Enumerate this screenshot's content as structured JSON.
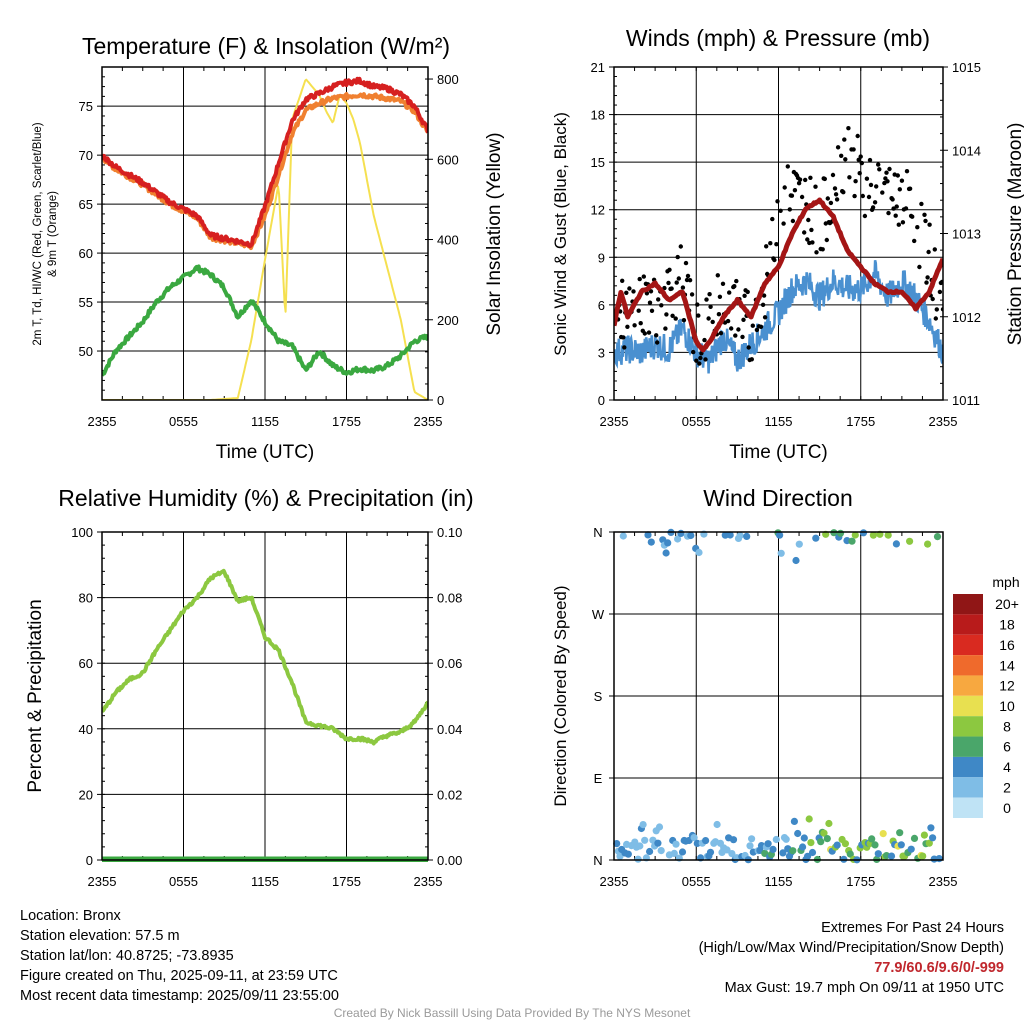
{
  "chart_data": [
    {
      "type": "line",
      "title": "Temperature (F) & Insolation (W/m²)",
      "xlabel": "Time (UTC)",
      "ylabel_left": "2m T, Td, HI/WC (Red, Green, Scarlet/Blue) & 9m T (Orange)",
      "ylabel_right": "Solar Insolation (Yellow)",
      "x_ticks": [
        "2355",
        "0555",
        "1155",
        "1755",
        "2355"
      ],
      "y_left_ticks": [
        50,
        55,
        60,
        65,
        70,
        75
      ],
      "y_left_range": [
        45,
        79
      ],
      "y_right_ticks": [
        0,
        200,
        400,
        600,
        800
      ],
      "y_right_range": [
        0,
        830
      ],
      "x_range": [
        0,
        24
      ],
      "series": [
        {
          "name": "2m T",
          "color": "#d62020",
          "axis": "left",
          "x": [
            0,
            1,
            2,
            3,
            4,
            5,
            6,
            7,
            8,
            9,
            10,
            11,
            12,
            13,
            14,
            15,
            16,
            17,
            18,
            19,
            20,
            21,
            22,
            23,
            24
          ],
          "values": [
            70.0,
            68.8,
            68.0,
            67.2,
            66.2,
            65.2,
            64.5,
            63.8,
            61.8,
            61.5,
            61.2,
            60.9,
            64.8,
            69.2,
            73.5,
            75.7,
            76.3,
            77.0,
            77.4,
            77.6,
            77.0,
            76.8,
            76.2,
            75.0,
            72.5
          ]
        },
        {
          "name": "9m T",
          "color": "#f08030",
          "axis": "left",
          "x": [
            0,
            1,
            2,
            3,
            4,
            5,
            6,
            7,
            8,
            9,
            10,
            11,
            12,
            13,
            14,
            15,
            16,
            17,
            18,
            19,
            20,
            21,
            22,
            23,
            24
          ],
          "values": [
            69.8,
            68.6,
            67.8,
            67.0,
            66.0,
            65.0,
            64.3,
            63.6,
            61.6,
            61.3,
            61.0,
            60.7,
            63.8,
            68.0,
            72.2,
            74.6,
            75.3,
            75.8,
            76.0,
            76.2,
            76.0,
            75.8,
            75.5,
            74.5,
            72.3
          ]
        },
        {
          "name": "Td",
          "color": "#3aa840",
          "axis": "left",
          "x": [
            0,
            1,
            2,
            3,
            4,
            5,
            6,
            7,
            8,
            9,
            10,
            11,
            12,
            13,
            14,
            15,
            16,
            17,
            18,
            19,
            20,
            21,
            22,
            23,
            24
          ],
          "values": [
            47.5,
            50.0,
            51.5,
            53.0,
            55.0,
            56.5,
            57.5,
            58.5,
            57.8,
            56.5,
            53.5,
            55.2,
            53.0,
            51.0,
            50.5,
            48.0,
            50.0,
            48.5,
            47.8,
            48.2,
            48.0,
            48.5,
            49.5,
            51.0,
            51.5
          ]
        },
        {
          "name": "Solar Insolation",
          "color": "#f5e050",
          "axis": "right",
          "x": [
            0,
            8,
            10,
            11,
            12,
            13,
            13.5,
            14,
            15,
            16,
            16.5,
            17,
            17.5,
            18,
            18.5,
            19,
            20,
            21,
            22,
            23,
            24
          ],
          "values": [
            0,
            0,
            5,
            150,
            350,
            540,
            200,
            700,
            800,
            760,
            720,
            690,
            760,
            740,
            700,
            640,
            460,
            330,
            200,
            20,
            0
          ]
        }
      ]
    },
    {
      "type": "scatter",
      "title": "Winds (mph) & Pressure (mb)",
      "xlabel": "Time (UTC)",
      "ylabel_left": "Sonic Wind & Gust (Blue, Black)",
      "ylabel_right": "Station Pressure (Maroon)",
      "x_ticks": [
        "2355",
        "0555",
        "1155",
        "1755",
        "2355"
      ],
      "y_left_ticks": [
        0,
        3,
        6,
        9,
        12,
        15,
        18,
        21
      ],
      "y_left_range": [
        0,
        21
      ],
      "y_right_ticks": [
        1011,
        1012,
        1013,
        1014,
        1015
      ],
      "y_right_range": [
        1011,
        1015
      ],
      "x_range": [
        0,
        24
      ],
      "series": [
        {
          "name": "Sonic Wind",
          "color": "#4a90d0",
          "x": [
            0,
            1,
            2,
            3,
            4,
            5,
            6,
            7,
            8,
            9,
            10,
            11,
            12,
            13,
            14,
            15,
            16,
            17,
            18,
            19,
            20,
            21,
            22,
            23,
            24
          ],
          "values": [
            3.0,
            3.2,
            3.0,
            3.5,
            3.2,
            4.5,
            3.0,
            2.5,
            4.0,
            2.5,
            3.5,
            4.5,
            5.5,
            7.0,
            7.5,
            6.5,
            7.5,
            7.0,
            7.0,
            8.0,
            6.5,
            7.5,
            6.5,
            5.0,
            3.0
          ]
        },
        {
          "name": "Gust",
          "color": "#000000",
          "x": [
            0,
            1,
            2,
            3,
            4,
            5,
            6,
            7,
            8,
            9,
            10,
            11,
            12,
            13,
            14,
            15,
            16,
            17,
            18,
            19,
            20,
            21,
            22,
            23,
            24
          ],
          "values": [
            6.0,
            5.0,
            6.5,
            5.5,
            7.0,
            7.5,
            4.0,
            4.5,
            6.5,
            5.5,
            4.5,
            7.0,
            12.0,
            13.0,
            12.5,
            11.0,
            13.5,
            16.0,
            14.0,
            13.5,
            12.5,
            13.0,
            11.0,
            9.0,
            5.5
          ]
        },
        {
          "name": "Station Pressure",
          "color": "#a41515",
          "axis": "right",
          "x": [
            0,
            0.5,
            1,
            2,
            3,
            4,
            5,
            6,
            6.5,
            7,
            8,
            9,
            10,
            11,
            12,
            13,
            14,
            15,
            16,
            17,
            18,
            19,
            20,
            21,
            22,
            23,
            24
          ],
          "values": [
            1011.9,
            1012.3,
            1012.0,
            1012.3,
            1012.4,
            1012.2,
            1012.3,
            1011.7,
            1011.6,
            1011.7,
            1012.0,
            1012.2,
            1012.0,
            1012.4,
            1012.6,
            1013.0,
            1013.3,
            1013.4,
            1013.2,
            1012.8,
            1012.6,
            1012.4,
            1012.3,
            1012.3,
            1012.1,
            1012.3,
            1012.7
          ]
        }
      ]
    },
    {
      "type": "line",
      "title": "Relative Humidity (%) & Precipitation (in)",
      "ylabel_left": "Percent & Precipitation",
      "x_ticks": [
        "2355",
        "0555",
        "1155",
        "1755",
        "2355"
      ],
      "y_left_ticks": [
        0,
        20,
        40,
        60,
        80,
        100
      ],
      "y_left_range": [
        0,
        100
      ],
      "y_right_ticks": [
        "0.00",
        "0.02",
        "0.04",
        "0.06",
        "0.08",
        "0.10"
      ],
      "y_right_range": [
        0,
        0.1
      ],
      "x_range": [
        0,
        24
      ],
      "series": [
        {
          "name": "Relative Humidity",
          "color": "#8cc840",
          "x": [
            0,
            1,
            2,
            3,
            4,
            5,
            6,
            7,
            8,
            9,
            10,
            11,
            12,
            13,
            14,
            15,
            16,
            17,
            18,
            19,
            20,
            21,
            22,
            23,
            24
          ],
          "values": [
            45,
            51,
            55,
            57,
            64,
            70,
            76,
            80,
            86,
            88,
            79,
            80,
            68,
            64,
            54,
            42,
            41,
            40,
            37,
            37,
            36,
            38,
            39,
            42,
            48
          ]
        },
        {
          "name": "Precipitation",
          "color": "#3aa840",
          "x": [
            0,
            24
          ],
          "values": [
            0,
            0
          ]
        }
      ]
    },
    {
      "type": "scatter",
      "title": "Wind Direction",
      "ylabel_left": "Direction (Colored By Speed)",
      "x_ticks": [
        "2355",
        "0555",
        "1155",
        "1755",
        "2355"
      ],
      "y_ticks": [
        "N",
        "E",
        "S",
        "W",
        "N"
      ],
      "y_range": [
        0,
        360
      ],
      "x_range": [
        0,
        24
      ],
      "legend": {
        "title": "mph",
        "labels": [
          "0",
          "2",
          "4",
          "6",
          "8",
          "10",
          "12",
          "14",
          "16",
          "18",
          "20+"
        ],
        "colors": [
          "#bfe3f5",
          "#7fbde6",
          "#3f88c6",
          "#4aa66a",
          "#8cc840",
          "#e8e050",
          "#f7a840",
          "#ef6a2c",
          "#d92a20",
          "#b81b1b",
          "#901616"
        ]
      }
    }
  ],
  "station_info": {
    "location": "Location: Bronx",
    "elevation": "Station elevation: 57.5 m",
    "latlon": "Station lat/lon: 40.8725; -73.8935",
    "created": "Figure created on Thu, 2025-09-11, at 23:59 UTC",
    "recent": "Most recent data timestamp: 2025/09/11 23:55:00"
  },
  "extremes": {
    "title": "Extremes For Past 24 Hours",
    "subtitle": "(High/Low/Max Wind/Precipitation/Snow Depth)",
    "values": "77.9/60.6/9.6/0/-999",
    "max_gust": "Max Gust: 19.7 mph On 09/11 at 1950 UTC"
  },
  "credit": "Created By Nick Bassill Using Data Provided By The NYS Mesonet"
}
